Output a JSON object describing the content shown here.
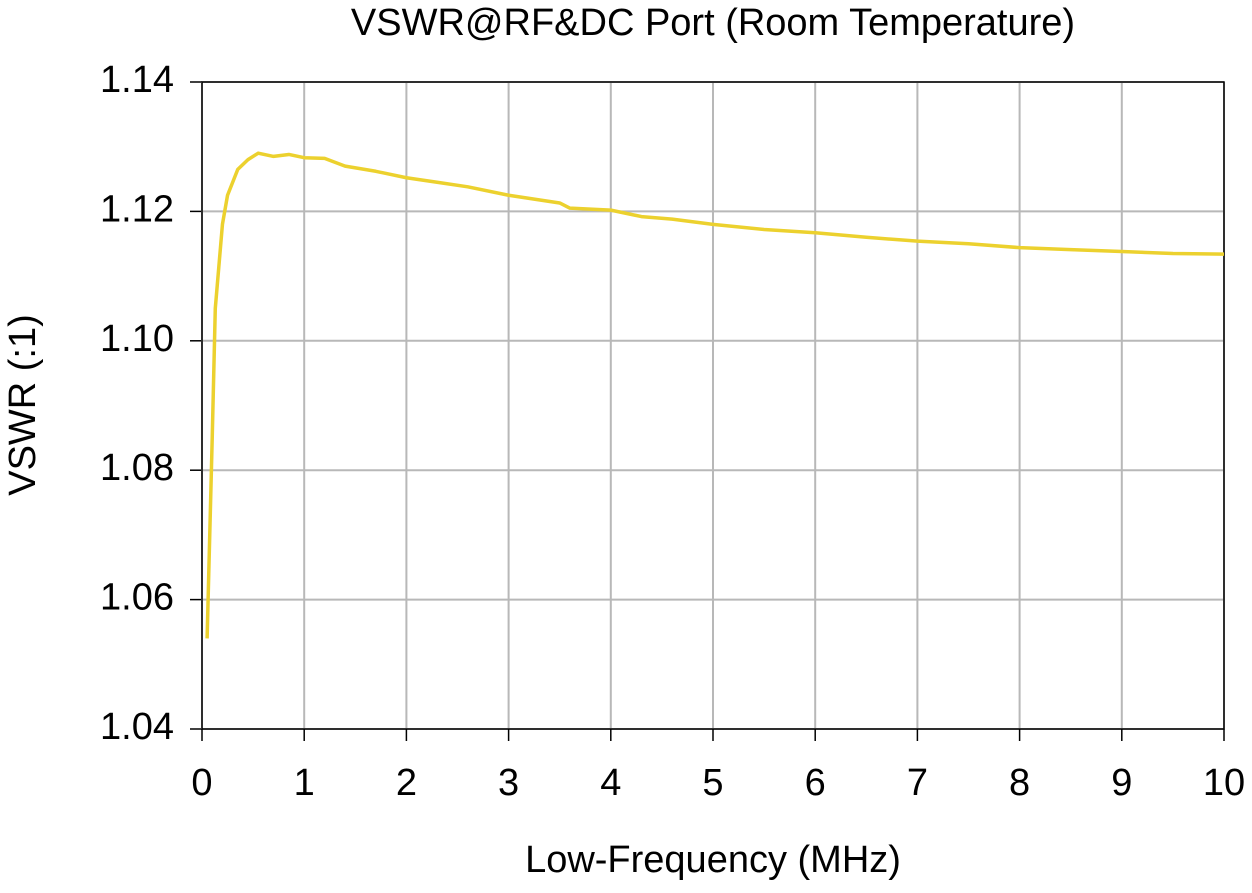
{
  "chart_data": {
    "type": "line",
    "title": "VSWR@RF&DC Port (Room Temperature)",
    "x_label": "Low-Frequency (MHz)",
    "y_label": "VSWR (:1)",
    "xlim": [
      0,
      10
    ],
    "ylim": [
      1.04,
      1.14
    ],
    "xticks": [
      0,
      1,
      2,
      3,
      4,
      5,
      6,
      7,
      8,
      9,
      10
    ],
    "yticks": [
      1.04,
      1.06,
      1.08,
      {
        "value": 1.1,
        "label": "1.10"
      },
      1.12,
      1.14
    ],
    "grid": true,
    "series": [
      {
        "name": "VSWR",
        "color": "#ecd12e",
        "x": [
          0.05,
          0.1,
          0.13,
          0.2,
          0.25,
          0.35,
          0.45,
          0.55,
          0.7,
          0.85,
          1.0,
          1.2,
          1.4,
          1.7,
          2.0,
          2.3,
          2.6,
          3.0,
          3.5,
          3.6,
          4.0,
          4.3,
          4.6,
          5.0,
          5.5,
          6.0,
          6.5,
          7.0,
          7.5,
          8.0,
          8.5,
          9.0,
          9.5,
          10.0
        ],
        "values": [
          1.054,
          1.085,
          1.105,
          1.118,
          1.1225,
          1.1265,
          1.128,
          1.129,
          1.1285,
          1.1288,
          1.1283,
          1.1282,
          1.127,
          1.1262,
          1.1252,
          1.1245,
          1.1238,
          1.1225,
          1.1213,
          1.1205,
          1.1202,
          1.1192,
          1.1188,
          1.118,
          1.1172,
          1.1167,
          1.116,
          1.1154,
          1.115,
          1.1144,
          1.1141,
          1.1138,
          1.1135,
          1.1134
        ]
      }
    ]
  }
}
